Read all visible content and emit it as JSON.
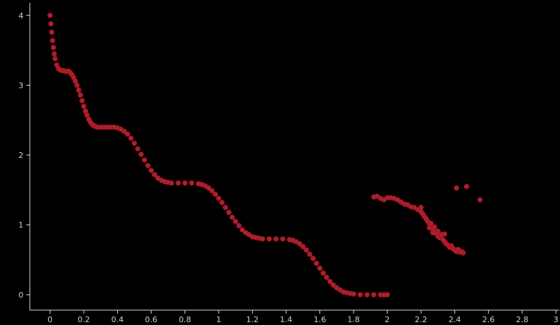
{
  "chart_data": {
    "type": "scatter",
    "title": "",
    "xlabel": "",
    "ylabel": "",
    "xlim": [
      -0.12,
      3.02
    ],
    "ylim": [
      -0.22,
      4.18
    ],
    "grid": false,
    "background": "#000000",
    "point_color": "#f01818",
    "point_fill": "#8a2c4a",
    "x_ticks": [
      0,
      0.2,
      0.4,
      0.6,
      0.8,
      1,
      1.2,
      1.4,
      1.6,
      1.8,
      2,
      2.2,
      2.4,
      2.6,
      2.8,
      3
    ],
    "x_tick_labels": [
      "0",
      "0.2",
      "0.4",
      "0.6",
      "0.8",
      "1",
      "1.2",
      "1.4",
      "1.6",
      "1.8",
      "2",
      "2.2",
      "2.4",
      "2.6",
      "2.8",
      "3"
    ],
    "y_ticks": [
      0,
      1,
      2,
      3,
      4
    ],
    "y_tick_labels": [
      "0",
      "1",
      "2",
      "3",
      "4"
    ],
    "series": [
      {
        "values": [
          [
            0.0,
            4.0
          ],
          [
            0.005,
            3.88
          ],
          [
            0.01,
            3.76
          ],
          [
            0.015,
            3.64
          ],
          [
            0.02,
            3.54
          ],
          [
            0.025,
            3.45
          ],
          [
            0.03,
            3.38
          ],
          [
            0.04,
            3.29
          ],
          [
            0.05,
            3.24
          ],
          [
            0.06,
            3.22
          ],
          [
            0.07,
            3.21
          ],
          [
            0.08,
            3.21
          ],
          [
            0.09,
            3.2
          ],
          [
            0.1,
            3.2
          ],
          [
            0.11,
            3.2
          ],
          [
            0.12,
            3.18
          ],
          [
            0.13,
            3.15
          ],
          [
            0.14,
            3.11
          ],
          [
            0.15,
            3.06
          ],
          [
            0.16,
            3.0
          ],
          [
            0.17,
            2.93
          ],
          [
            0.18,
            2.86
          ],
          [
            0.19,
            2.78
          ],
          [
            0.2,
            2.7
          ],
          [
            0.21,
            2.63
          ],
          [
            0.22,
            2.57
          ],
          [
            0.23,
            2.51
          ],
          [
            0.24,
            2.47
          ],
          [
            0.25,
            2.44
          ],
          [
            0.26,
            2.42
          ],
          [
            0.27,
            2.41
          ],
          [
            0.28,
            2.4
          ],
          [
            0.3,
            2.4
          ],
          [
            0.32,
            2.4
          ],
          [
            0.34,
            2.4
          ],
          [
            0.36,
            2.4
          ],
          [
            0.38,
            2.4
          ],
          [
            0.4,
            2.39
          ],
          [
            0.42,
            2.37
          ],
          [
            0.44,
            2.34
          ],
          [
            0.46,
            2.3
          ],
          [
            0.48,
            2.24
          ],
          [
            0.5,
            2.17
          ],
          [
            0.52,
            2.09
          ],
          [
            0.54,
            2.01
          ],
          [
            0.56,
            1.93
          ],
          [
            0.58,
            1.85
          ],
          [
            0.6,
            1.78
          ],
          [
            0.62,
            1.72
          ],
          [
            0.64,
            1.67
          ],
          [
            0.66,
            1.64
          ],
          [
            0.68,
            1.62
          ],
          [
            0.7,
            1.61
          ],
          [
            0.72,
            1.6
          ],
          [
            0.76,
            1.6
          ],
          [
            0.8,
            1.6
          ],
          [
            0.84,
            1.6
          ],
          [
            0.88,
            1.59
          ],
          [
            0.9,
            1.58
          ],
          [
            0.92,
            1.56
          ],
          [
            0.94,
            1.53
          ],
          [
            0.96,
            1.49
          ],
          [
            0.98,
            1.44
          ],
          [
            1.0,
            1.38
          ],
          [
            1.02,
            1.32
          ],
          [
            1.04,
            1.25
          ],
          [
            1.06,
            1.18
          ],
          [
            1.08,
            1.11
          ],
          [
            1.1,
            1.05
          ],
          [
            1.12,
            0.99
          ],
          [
            1.14,
            0.93
          ],
          [
            1.16,
            0.89
          ],
          [
            1.18,
            0.86
          ],
          [
            1.2,
            0.83
          ],
          [
            1.22,
            0.82
          ],
          [
            1.24,
            0.81
          ],
          [
            1.26,
            0.8
          ],
          [
            1.3,
            0.8
          ],
          [
            1.34,
            0.8
          ],
          [
            1.38,
            0.8
          ],
          [
            1.42,
            0.79
          ],
          [
            1.44,
            0.78
          ],
          [
            1.46,
            0.76
          ],
          [
            1.48,
            0.73
          ],
          [
            1.5,
            0.69
          ],
          [
            1.52,
            0.64
          ],
          [
            1.54,
            0.58
          ],
          [
            1.56,
            0.52
          ],
          [
            1.58,
            0.45
          ],
          [
            1.6,
            0.38
          ],
          [
            1.62,
            0.31
          ],
          [
            1.64,
            0.25
          ],
          [
            1.66,
            0.19
          ],
          [
            1.68,
            0.14
          ],
          [
            1.7,
            0.1
          ],
          [
            1.72,
            0.07
          ],
          [
            1.74,
            0.04
          ],
          [
            1.76,
            0.03
          ],
          [
            1.78,
            0.02
          ],
          [
            1.8,
            0.01
          ],
          [
            1.84,
            0.0
          ],
          [
            1.88,
            0.0
          ],
          [
            1.92,
            0.0
          ],
          [
            1.96,
            0.0
          ],
          [
            1.98,
            0.0
          ],
          [
            2.0,
            0.0
          ]
        ]
      },
      {
        "values": [
          [
            1.92,
            1.4
          ],
          [
            1.94,
            1.41
          ],
          [
            1.96,
            1.38
          ],
          [
            1.98,
            1.36
          ],
          [
            2.0,
            1.39
          ],
          [
            2.02,
            1.39
          ],
          [
            2.04,
            1.38
          ],
          [
            2.06,
            1.36
          ],
          [
            2.08,
            1.33
          ],
          [
            2.1,
            1.3
          ],
          [
            2.12,
            1.29
          ],
          [
            2.14,
            1.26
          ],
          [
            2.16,
            1.25
          ],
          [
            2.18,
            1.22
          ],
          [
            2.2,
            1.19
          ],
          [
            2.2,
            1.25
          ],
          [
            2.21,
            1.16
          ],
          [
            2.22,
            1.12
          ],
          [
            2.23,
            1.09
          ],
          [
            2.24,
            1.05
          ],
          [
            2.25,
            1.01
          ],
          [
            2.25,
            0.96
          ],
          [
            2.26,
            1.02
          ],
          [
            2.27,
            0.93
          ],
          [
            2.27,
            0.89
          ],
          [
            2.28,
            0.97
          ],
          [
            2.29,
            0.88
          ],
          [
            2.3,
            0.84
          ],
          [
            2.3,
            0.91
          ],
          [
            2.31,
            0.82
          ],
          [
            2.32,
            0.86
          ],
          [
            2.33,
            0.79
          ],
          [
            2.34,
            0.76
          ],
          [
            2.34,
            0.87
          ],
          [
            2.35,
            0.73
          ],
          [
            2.36,
            0.71
          ],
          [
            2.37,
            0.68
          ],
          [
            2.38,
            0.7
          ],
          [
            2.39,
            0.66
          ],
          [
            2.4,
            0.64
          ],
          [
            2.41,
            0.62
          ],
          [
            2.42,
            0.65
          ],
          [
            2.43,
            0.61
          ],
          [
            2.44,
            0.62
          ],
          [
            2.45,
            0.6
          ],
          [
            2.41,
            1.53
          ],
          [
            2.47,
            1.55
          ],
          [
            2.55,
            1.36
          ]
        ]
      }
    ]
  }
}
